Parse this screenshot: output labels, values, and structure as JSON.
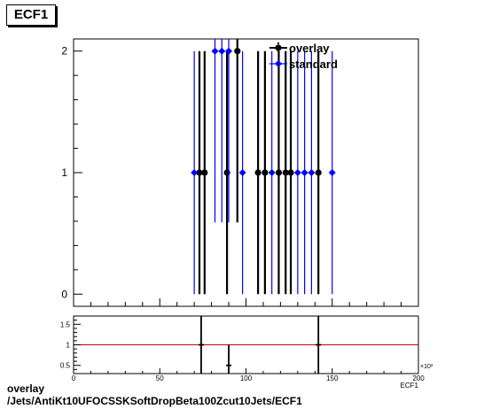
{
  "window_title": "ECF1",
  "footer": {
    "line1": "overlay",
    "line2": "/Jets/AntiKt10UFOCSSKSoftDropBeta100Zcut10Jets/ECF1"
  },
  "chart_data": [
    {
      "type": "scatter",
      "title": "ECF1",
      "xlabel": "ECF1",
      "ylabel": "",
      "xlim": [
        0,
        200000
      ],
      "ylim": [
        -0.1,
        2.1
      ],
      "x_multiplier_label": "×10³",
      "x_ticks": [
        0,
        50,
        100,
        150,
        200
      ],
      "y_ticks": [
        0,
        1,
        2
      ],
      "grid": false,
      "legend_position": "top-right",
      "series": [
        {
          "name": "overlay",
          "color": "#000000",
          "points": [
            {
              "x": 73000,
              "y": 1,
              "err": 1
            },
            {
              "x": 76000,
              "y": 1,
              "err": 1
            },
            {
              "x": 89000,
              "y": 1,
              "err": 1
            },
            {
              "x": 95000,
              "y": 2,
              "err": 1.41
            },
            {
              "x": 107000,
              "y": 1,
              "err": 1
            },
            {
              "x": 111000,
              "y": 1,
              "err": 1
            },
            {
              "x": 119000,
              "y": 1,
              "err": 1
            },
            {
              "x": 123000,
              "y": 1,
              "err": 1
            },
            {
              "x": 126000,
              "y": 1,
              "err": 1
            },
            {
              "x": 142000,
              "y": 1,
              "err": 1
            }
          ]
        },
        {
          "name": "standard",
          "color": "#0000ff",
          "points": [
            {
              "x": 70000,
              "y": 1,
              "err": 1
            },
            {
              "x": 82000,
              "y": 2,
              "err": 1.41
            },
            {
              "x": 86000,
              "y": 2,
              "err": 1.41
            },
            {
              "x": 90000,
              "y": 2,
              "err": 1.41
            },
            {
              "x": 98000,
              "y": 1,
              "err": 1
            },
            {
              "x": 115000,
              "y": 1,
              "err": 1
            },
            {
              "x": 130000,
              "y": 1,
              "err": 1
            },
            {
              "x": 134000,
              "y": 1,
              "err": 1
            },
            {
              "x": 138000,
              "y": 1,
              "err": 1
            },
            {
              "x": 150000,
              "y": 1,
              "err": 1
            }
          ]
        }
      ]
    },
    {
      "type": "scatter",
      "title": "",
      "xlabel": "",
      "ylabel": "",
      "xlim": [
        0,
        200000
      ],
      "ylim": [
        0.3,
        1.7
      ],
      "y_ticks": [
        0.5,
        1,
        1.5
      ],
      "y_tick_labels": [
        "0.5",
        "1",
        "1.5"
      ],
      "reference_line": {
        "y": 1,
        "color": "#cc0000"
      },
      "series": [
        {
          "name": "",
          "color": "#000000",
          "points": [
            {
              "x": 74000,
              "y": 1,
              "err": 1
            },
            {
              "x": 90000,
              "y": 0.5,
              "err": 0.5
            },
            {
              "x": 142000,
              "y": 1,
              "err": 1
            }
          ]
        }
      ]
    }
  ]
}
